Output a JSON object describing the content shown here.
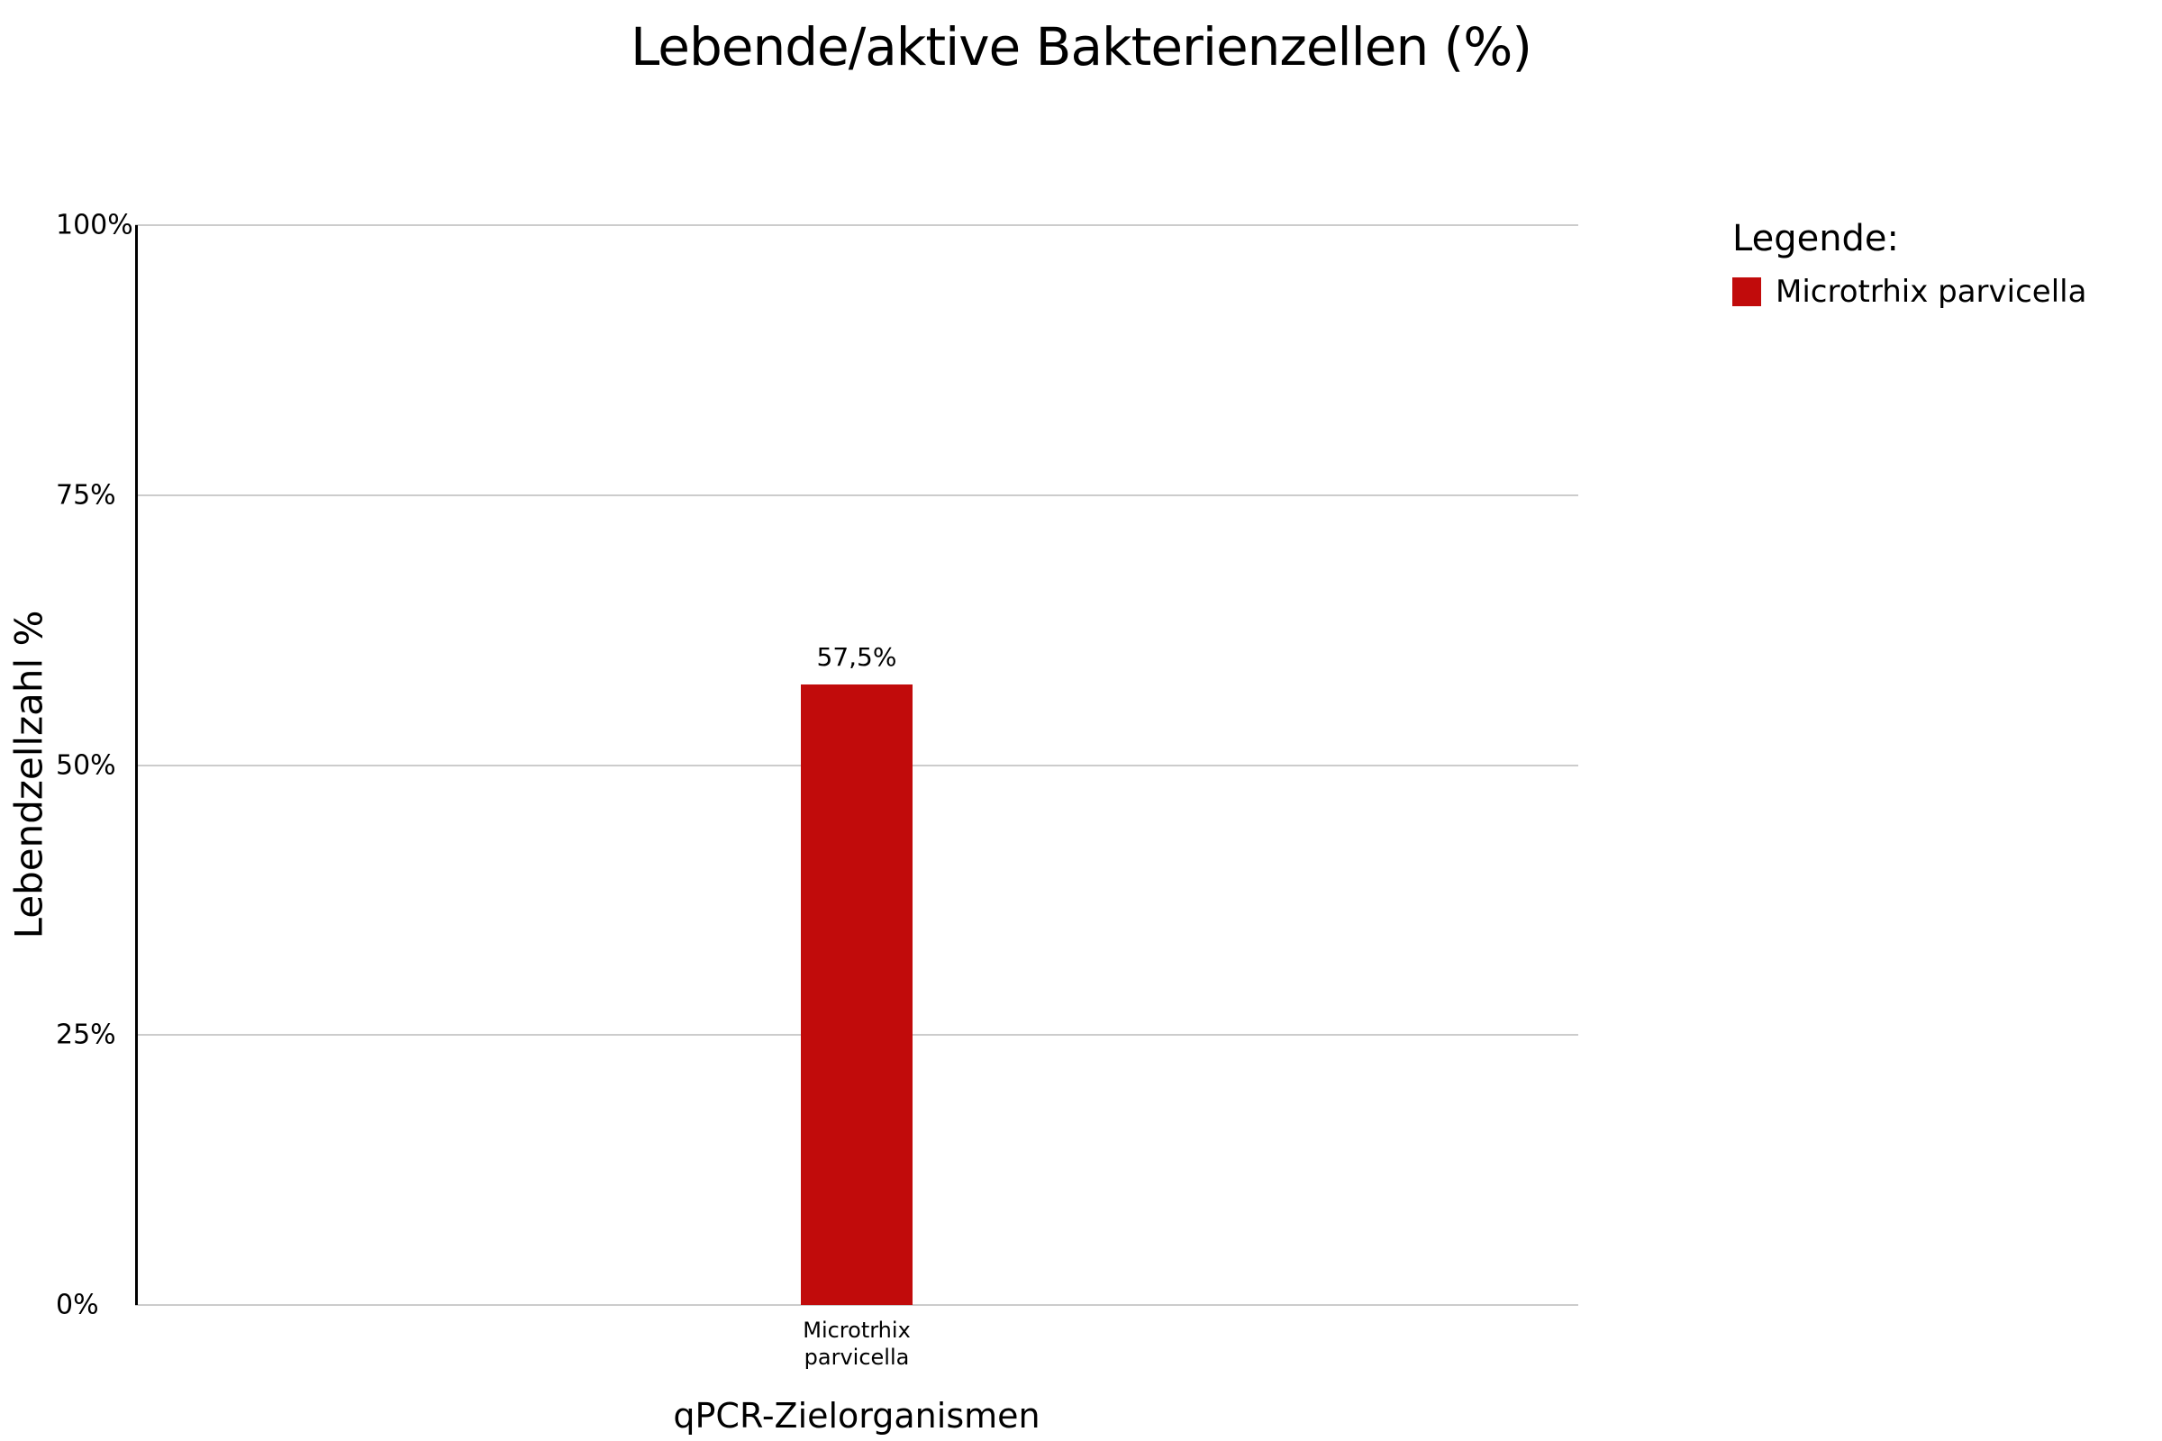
{
  "chart_data": {
    "type": "bar",
    "title": "Lebende/aktive Bakterienzellen (%)",
    "xlabel": "qPCR-Zielorganismen",
    "ylabel": "Lebendzellzahl %",
    "categories": [
      "Microtrhix parvicella"
    ],
    "series": [
      {
        "name": "Microtrhix parvicella",
        "values": [
          57.5
        ],
        "color": "#c10b0b"
      }
    ],
    "value_labels": [
      "57,5%"
    ],
    "ylim": [
      0,
      100
    ],
    "yticks": [
      {
        "value": 0,
        "label": "0%"
      },
      {
        "value": 25,
        "label": "25%"
      },
      {
        "value": 50,
        "label": "50%"
      },
      {
        "value": 75,
        "label": "75%"
      },
      {
        "value": 100,
        "label": "100%"
      }
    ],
    "grid": "horizontal-only",
    "legend_position": "top-right"
  },
  "legend": {
    "title": "Legende:",
    "items": [
      {
        "label": "Microtrhix parvicella",
        "color": "#c10b0b"
      }
    ]
  },
  "colors": {
    "bar": "#c10b0b",
    "gridline": "#cccccc",
    "axis": "#000000",
    "background": "#ffffff",
    "text": "#000000"
  }
}
